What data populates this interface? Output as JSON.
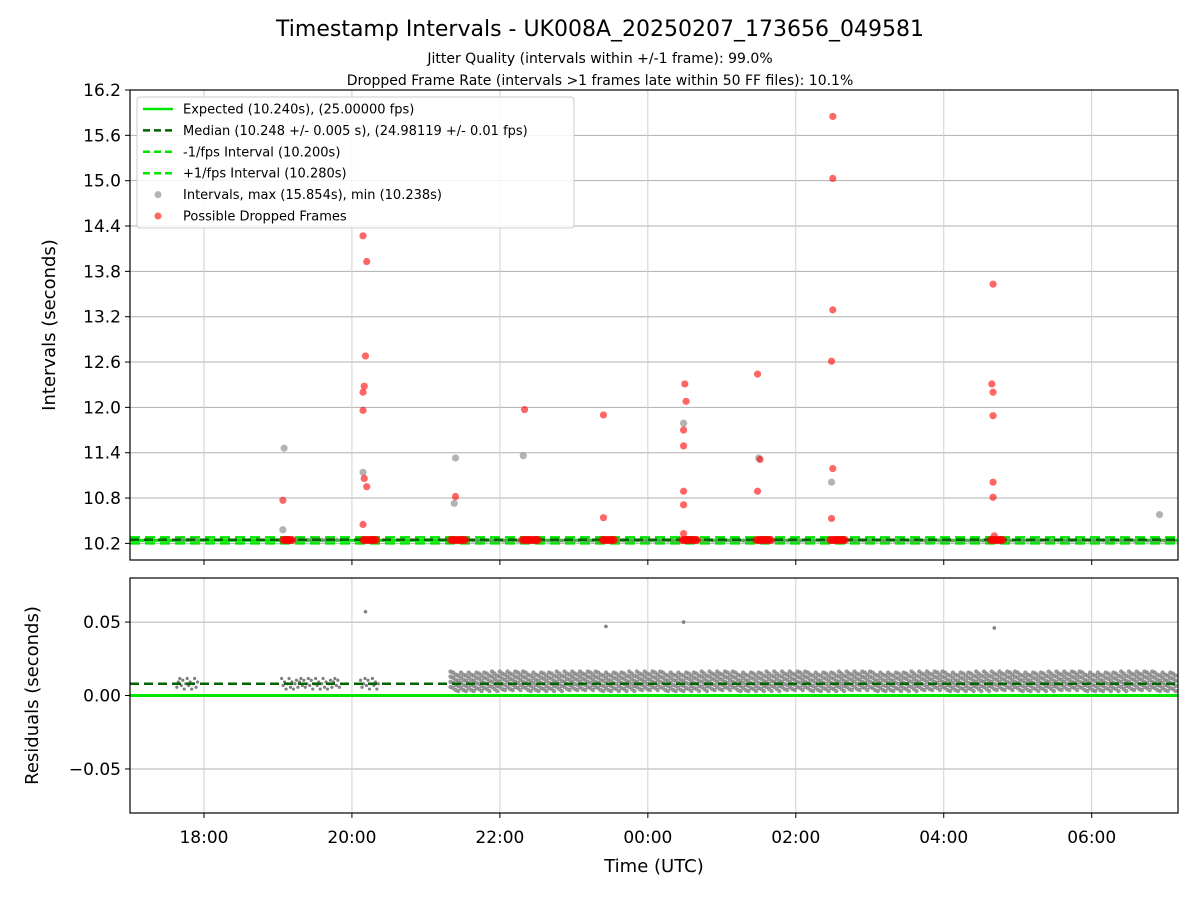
{
  "figure": {
    "title": "Timestamp Intervals - UK008A_20250207_173656_049581",
    "subtitle1": "Jitter Quality (intervals within +/-1 frame): 99.0%",
    "subtitle2": "Dropped Frame Rate (intervals >1 frames late within 50 FF files): 10.1%",
    "xlabel": "Time (UTC)"
  },
  "colors": {
    "expected": "#00e600",
    "median": "#006400",
    "interval_pts": "#808080",
    "dropped": "#ff0000",
    "grid": "#b0b0b0"
  },
  "chart_data": [
    {
      "type": "scatter",
      "name": "intervals",
      "ylabel": "Intervals (seconds)",
      "xlim": [
        "17:00",
        "07:10"
      ],
      "ylim": [
        9.98,
        16.2
      ],
      "yticks": [
        10.2,
        10.8,
        11.4,
        12.0,
        12.6,
        13.2,
        13.8,
        14.4,
        15.0,
        15.6,
        16.2
      ],
      "xticks": [
        "18:00",
        "20:00",
        "22:00",
        "00:00",
        "02:00",
        "04:00",
        "06:00"
      ],
      "grid": true,
      "legend_position": "top-left",
      "legend": [
        "Expected (10.240s), (25.00000 fps)",
        "Median (10.248 +/- 0.005 s), (24.98119 +/- 0.01 fps)",
        "-1/fps Interval (10.200s)",
        "+1/fps Interval (10.280s)",
        "Intervals, max (15.854s), min (10.238s)",
        "Possible Dropped Frames"
      ],
      "expected": 10.24,
      "median": 10.248,
      "minus_interval": 10.2,
      "plus_interval": 10.28,
      "series": [
        {
          "name": "Intervals, max (15.854s), min (10.238s)",
          "points": [
            [
              "19:05",
              11.46
            ],
            [
              "19:04",
              10.38
            ],
            [
              "20:09",
              11.14
            ],
            [
              "21:24",
              11.33
            ],
            [
              "21:23",
              10.73
            ],
            [
              "22:19",
              11.36
            ],
            [
              "00:29",
              11.79
            ],
            [
              "01:30",
              11.33
            ],
            [
              "02:29",
              11.01
            ],
            [
              "06:55",
              10.58
            ]
          ]
        },
        {
          "name": "Possible Dropped Frames",
          "points": [
            [
              "19:04",
              10.77
            ],
            [
              "20:09",
              14.27
            ],
            [
              "20:12",
              13.93
            ],
            [
              "20:11",
              12.68
            ],
            [
              "20:10",
              12.28
            ],
            [
              "20:09",
              12.2
            ],
            [
              "20:09",
              11.96
            ],
            [
              "20:10",
              11.06
            ],
            [
              "20:12",
              10.95
            ],
            [
              "20:09",
              10.45
            ],
            [
              "21:24",
              10.82
            ],
            [
              "22:20",
              11.97
            ],
            [
              "23:24",
              11.9
            ],
            [
              "23:24",
              10.54
            ],
            [
              "00:30",
              12.31
            ],
            [
              "00:31",
              12.08
            ],
            [
              "00:29",
              11.7
            ],
            [
              "00:29",
              11.49
            ],
            [
              "00:29",
              10.89
            ],
            [
              "00:29",
              10.71
            ],
            [
              "00:29",
              10.33
            ],
            [
              "01:29",
              12.44
            ],
            [
              "01:31",
              11.31
            ],
            [
              "01:29",
              10.89
            ],
            [
              "02:30",
              15.85
            ],
            [
              "02:30",
              15.03
            ],
            [
              "02:30",
              13.29
            ],
            [
              "02:29",
              12.61
            ],
            [
              "02:30",
              11.19
            ],
            [
              "02:29",
              10.53
            ],
            [
              "04:40",
              13.63
            ],
            [
              "04:39",
              12.31
            ],
            [
              "04:40",
              12.2
            ],
            [
              "04:40",
              11.89
            ],
            [
              "04:40",
              11.01
            ],
            [
              "04:40",
              10.81
            ],
            [
              "04:41",
              10.3
            ]
          ],
          "clusters": [
            [
              "19:04",
              "19:12"
            ],
            [
              "20:09",
              "20:20"
            ],
            [
              "21:20",
              "21:32"
            ],
            [
              "22:18",
              "22:31"
            ],
            [
              "23:23",
              "23:33"
            ],
            [
              "00:28",
              "00:40"
            ],
            [
              "01:28",
              "01:40"
            ],
            [
              "02:28",
              "02:40"
            ],
            [
              "04:38",
              "04:48"
            ]
          ]
        }
      ]
    },
    {
      "type": "scatter",
      "name": "residuals",
      "ylabel": "Residuals (seconds)",
      "xlim": [
        "17:00",
        "07:10"
      ],
      "ylim": [
        -0.08,
        0.08
      ],
      "yticks": [
        0.05,
        0.0,
        -0.05
      ],
      "ytick_labels": [
        "0.05",
        "0.00",
        "−0.05"
      ],
      "xticks": [
        "18:00",
        "20:00",
        "22:00",
        "00:00",
        "02:00",
        "04:00",
        "06:00"
      ],
      "grid": true,
      "expected": 0.0,
      "median": 0.008,
      "outliers": [
        [
          "20:11",
          0.057
        ],
        [
          "23:26",
          0.047
        ],
        [
          "00:29",
          0.05
        ],
        [
          "04:41",
          0.046
        ]
      ],
      "early_segments": [
        [
          "17:38",
          "17:55"
        ],
        [
          "19:03",
          "19:50"
        ],
        [
          "20:07",
          "20:22"
        ]
      ],
      "dense_band": {
        "start": "21:20",
        "end": "07:10",
        "low": 0.003,
        "high": 0.017
      }
    }
  ]
}
